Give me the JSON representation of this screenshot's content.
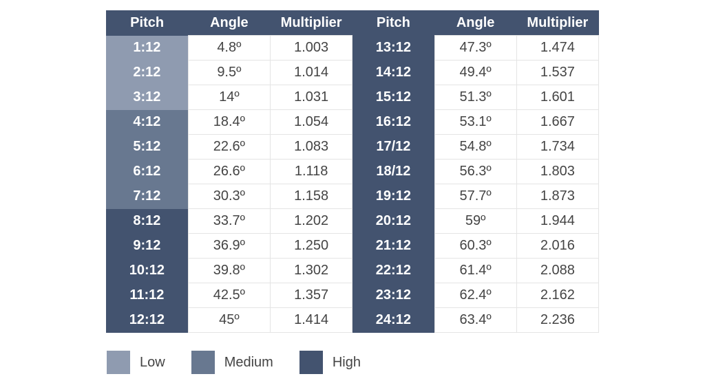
{
  "table": {
    "header": [
      "Pitch",
      "Angle",
      "Multiplier",
      "Pitch",
      "Angle",
      "Multiplier"
    ],
    "header_color": "#43536f",
    "rows": [
      {
        "cells": [
          "1:12",
          "4.8º",
          "1.003",
          "13:12",
          "47.3º",
          "1.474"
        ],
        "pitch_colors": [
          "#8f9bb0",
          "#43536f"
        ]
      },
      {
        "cells": [
          "2:12",
          "9.5º",
          "1.014",
          "14:12",
          "49.4º",
          "1.537"
        ],
        "pitch_colors": [
          "#8f9bb0",
          "#43536f"
        ]
      },
      {
        "cells": [
          "3:12",
          "14º",
          "1.031",
          "15:12",
          "51.3º",
          "1.601"
        ],
        "pitch_colors": [
          "#8f9bb0",
          "#43536f"
        ]
      },
      {
        "cells": [
          "4:12",
          "18.4º",
          "1.054",
          "16:12",
          "53.1º",
          "1.667"
        ],
        "pitch_colors": [
          "#687890",
          "#43536f"
        ]
      },
      {
        "cells": [
          "5:12",
          "22.6º",
          "1.083",
          "17/12",
          "54.8º",
          "1.734"
        ],
        "pitch_colors": [
          "#687890",
          "#43536f"
        ]
      },
      {
        "cells": [
          "6:12",
          "26.6º",
          "1.118",
          "18/12",
          "56.3º",
          "1.803"
        ],
        "pitch_colors": [
          "#687890",
          "#43536f"
        ]
      },
      {
        "cells": [
          "7:12",
          "30.3º",
          "1.158",
          "19:12",
          "57.7º",
          "1.873"
        ],
        "pitch_colors": [
          "#687890",
          "#43536f"
        ]
      },
      {
        "cells": [
          "8:12",
          "33.7º",
          "1.202",
          "20:12",
          "59º",
          "1.944"
        ],
        "pitch_colors": [
          "#43536f",
          "#43536f"
        ]
      },
      {
        "cells": [
          "9:12",
          "36.9º",
          "1.250",
          "21:12",
          "60.3º",
          "2.016"
        ],
        "pitch_colors": [
          "#43536f",
          "#43536f"
        ]
      },
      {
        "cells": [
          "10:12",
          "39.8º",
          "1.302",
          "22:12",
          "61.4º",
          "2.088"
        ],
        "pitch_colors": [
          "#43536f",
          "#43536f"
        ]
      },
      {
        "cells": [
          "11:12",
          "42.5º",
          "1.357",
          "23:12",
          "62.4º",
          "2.162"
        ],
        "pitch_colors": [
          "#43536f",
          "#43536f"
        ]
      },
      {
        "cells": [
          "12:12",
          "45º",
          "1.414",
          "24:12",
          "63.4º",
          "2.236"
        ],
        "pitch_colors": [
          "#43536f",
          "#43536f"
        ]
      }
    ]
  },
  "legend": [
    {
      "label": "Low",
      "color": "#8f9bb0"
    },
    {
      "label": "Medium",
      "color": "#687890"
    },
    {
      "label": "High",
      "color": "#43536f"
    }
  ]
}
